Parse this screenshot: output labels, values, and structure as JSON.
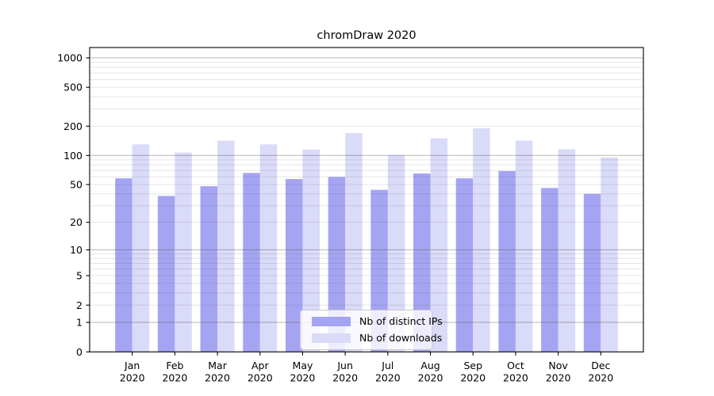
{
  "chart_data": {
    "type": "bar",
    "title": "chromDraw 2020",
    "categories": [
      "Jan",
      "Feb",
      "Mar",
      "Apr",
      "May",
      "Jun",
      "Jul",
      "Aug",
      "Sep",
      "Oct",
      "Nov",
      "Dec"
    ],
    "x_tick_second_line": "2020",
    "series": [
      {
        "name": "Nb of distinct IPs",
        "color": "#a4a4f2",
        "values": [
          58,
          38,
          48,
          66,
          57,
          60,
          44,
          65,
          58,
          69,
          46,
          40
        ]
      },
      {
        "name": "Nb of downloads",
        "color": "#dadaf9",
        "values": [
          130,
          107,
          142,
          130,
          115,
          170,
          101,
          150,
          190,
          142,
          116,
          95
        ]
      }
    ],
    "y_scale": "symlog",
    "y_ticks": [
      0,
      1,
      2,
      5,
      10,
      20,
      50,
      100,
      200,
      500,
      1000
    ],
    "y_major_gridline_values": [
      1,
      10,
      100,
      1000
    ],
    "xlabel": "",
    "ylabel": "",
    "grid": true,
    "legend_position": "lower center",
    "colors": {
      "axis": "#000000",
      "major_grid": "rgba(80,80,80,0.42)",
      "minor_grid": "rgba(80,80,80,0.15)",
      "background": "#ffffff",
      "text": "#000000"
    }
  }
}
